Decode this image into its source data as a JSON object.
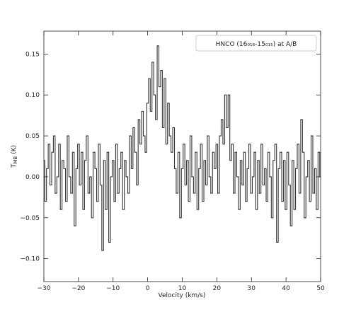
{
  "chart_data": {
    "type": "step",
    "x_label": "Velocity (km/s)",
    "y_label": {
      "text": "T",
      "subscript": "MB",
      "unit": "(K)"
    },
    "xlim": [
      -30,
      50
    ],
    "ylim": [
      -0.128,
      0.178
    ],
    "xticks": [
      {
        "value": -30,
        "label": "−30"
      },
      {
        "value": -20,
        "label": "−20"
      },
      {
        "value": -10,
        "label": "−10"
      },
      0,
      10,
      20,
      30,
      40,
      50
    ],
    "yticks": [
      {
        "value": -0.1,
        "label": "−0.10"
      },
      {
        "value": -0.05,
        "label": "−0.05"
      },
      {
        "value": 0,
        "label": "0.00"
      },
      0.05,
      {
        "value": 0.1,
        "label": "0.10"
      },
      0.15
    ],
    "legend": "upper right",
    "x": [
      -30,
      -29.5,
      -29,
      -28.5,
      -28,
      -27.5,
      -27,
      -26.5,
      -26,
      -25.5,
      -25,
      -24.5,
      -24,
      -23.5,
      -23,
      -22.5,
      -22,
      -21.5,
      -21,
      -20.5,
      -20,
      -19.5,
      -19,
      -18.5,
      -18,
      -17.5,
      -17,
      -16.5,
      -16,
      -15.5,
      -15,
      -14.5,
      -14,
      -13.5,
      -13,
      -12.5,
      -12,
      -11.5,
      -11,
      -10.5,
      -10,
      -9.5,
      -9,
      -8.5,
      -8,
      -7.5,
      -7,
      -6.5,
      -6,
      -5.5,
      -5,
      -4.5,
      -4,
      -3.5,
      -3,
      -2.5,
      -2,
      -1.5,
      -1,
      -0.5,
      0,
      0.5,
      1,
      1.5,
      2,
      2.5,
      3,
      3.5,
      4,
      4.5,
      5,
      5.5,
      6,
      6.5,
      7,
      7.5,
      8,
      8.5,
      9,
      9.5,
      10,
      10.5,
      11,
      11.5,
      12,
      12.5,
      13,
      13.5,
      14,
      14.5,
      15,
      15.5,
      16,
      16.5,
      17,
      17.5,
      18,
      18.5,
      19,
      19.5,
      20,
      20.5,
      21,
      21.5,
      22,
      22.5,
      23,
      23.5,
      24,
      24.5,
      25,
      25.5,
      26,
      26.5,
      27,
      27.5,
      28,
      28.5,
      29,
      29.5,
      30,
      30.5,
      31,
      31.5,
      32,
      32.5,
      33,
      33.5,
      34,
      34.5,
      35,
      35.5,
      36,
      36.5,
      37,
      37.5,
      38,
      38.5,
      39,
      39.5,
      40,
      40.5,
      41,
      41.5,
      42,
      42.5,
      43,
      43.5,
      44,
      44.5,
      45,
      45.5,
      46,
      46.5,
      47,
      47.5,
      48,
      48.5,
      49,
      49.5,
      50
    ],
    "series": [
      {
        "name": "HNCO (16₀₁₆-15₀₁₅) at A/B",
        "color": "#333333",
        "values": [
          0.02,
          -0.03,
          0.01,
          0.04,
          -0.01,
          0.03,
          0.05,
          -0.02,
          0.0,
          0.04,
          -0.04,
          0.02,
          0.01,
          -0.03,
          0.05,
          0.0,
          -0.02,
          0.03,
          -0.06,
          0.01,
          0.04,
          -0.01,
          0.03,
          -0.04,
          0.02,
          0.05,
          -0.02,
          0.0,
          -0.05,
          0.03,
          0.01,
          -0.03,
          0.04,
          -0.01,
          -0.09,
          0.02,
          -0.04,
          0.03,
          -0.08,
          0.0,
          0.02,
          -0.03,
          0.04,
          -0.02,
          0.01,
          0.03,
          -0.04,
          0.02,
          0.0,
          -0.02,
          0.05,
          0.01,
          0.06,
          0.03,
          -0.01,
          0.07,
          0.04,
          0.08,
          0.05,
          0.03,
          0.09,
          0.12,
          0.08,
          0.14,
          0.1,
          0.07,
          0.16,
          0.11,
          0.13,
          0.06,
          0.12,
          0.04,
          0.09,
          0.05,
          0.03,
          0.06,
          0.01,
          -0.02,
          0.03,
          -0.05,
          0.01,
          0.04,
          -0.01,
          0.02,
          -0.03,
          0.05,
          0.0,
          -0.02,
          0.03,
          -0.04,
          0.01,
          0.04,
          -0.03,
          0.02,
          -0.01,
          0.05,
          0.0,
          -0.02,
          0.03,
          0.01,
          0.04,
          -0.02,
          0.05,
          0.07,
          0.04,
          0.1,
          0.06,
          0.1,
          0.02,
          0.04,
          -0.02,
          0.03,
          0.0,
          -0.04,
          0.02,
          -0.01,
          0.03,
          -0.03,
          0.01,
          0.04,
          -0.02,
          0.0,
          0.03,
          -0.04,
          0.02,
          -0.02,
          0.04,
          -0.01,
          0.01,
          -0.03,
          0.03,
          0.0,
          -0.05,
          0.02,
          0.04,
          -0.08,
          0.01,
          0.03,
          -0.03,
          0.02,
          -0.04,
          0.03,
          -0.01,
          -0.06,
          0.02,
          -0.04,
          0.01,
          0.04,
          -0.02,
          0.07,
          0.03,
          -0.05,
          0.0,
          0.02,
          -0.03,
          0.05,
          -0.02,
          0.01,
          -0.04,
          0.03,
          0.0
        ]
      }
    ]
  }
}
